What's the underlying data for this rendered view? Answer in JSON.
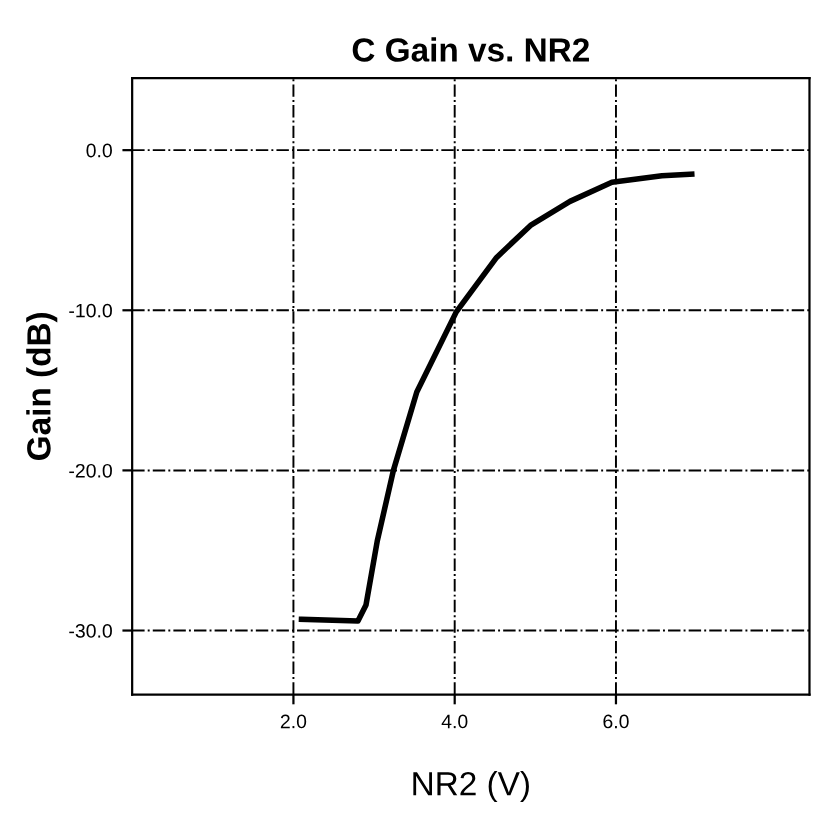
{
  "chart_data": {
    "type": "line",
    "title": "C Gain vs. NR2",
    "xlabel": "NR2 (V)",
    "ylabel": "Gain (dB)",
    "x": [
      2.1,
      2.8,
      2.9,
      3.04,
      3.24,
      3.53,
      4.02,
      4.52,
      4.94,
      5.43,
      5.95,
      6.57,
      6.94
    ],
    "series": [
      {
        "color": "#000000",
        "values": [
          -29.3,
          -29.4,
          -28.4,
          -24.4,
          -20.0,
          -15.1,
          -10.1,
          -6.7,
          -4.7,
          -3.2,
          -2.0,
          -1.6,
          -1.5
        ]
      }
    ],
    "xlim": [
      0,
      8.4
    ],
    "ylim": [
      -34,
      4.5
    ],
    "xticks": [
      {
        "value": 2,
        "label": "2.0"
      },
      {
        "value": 4,
        "label": "4.0"
      },
      {
        "value": 6,
        "label": "6.0"
      }
    ],
    "yticks": [
      {
        "value": 0,
        "label": "0.0"
      },
      {
        "value": -10,
        "label": "-10.0"
      },
      {
        "value": -20,
        "label": "-20.0"
      },
      {
        "value": -30,
        "label": "-30.0"
      }
    ],
    "grid": true,
    "marker": "none",
    "line_style": "solid"
  }
}
